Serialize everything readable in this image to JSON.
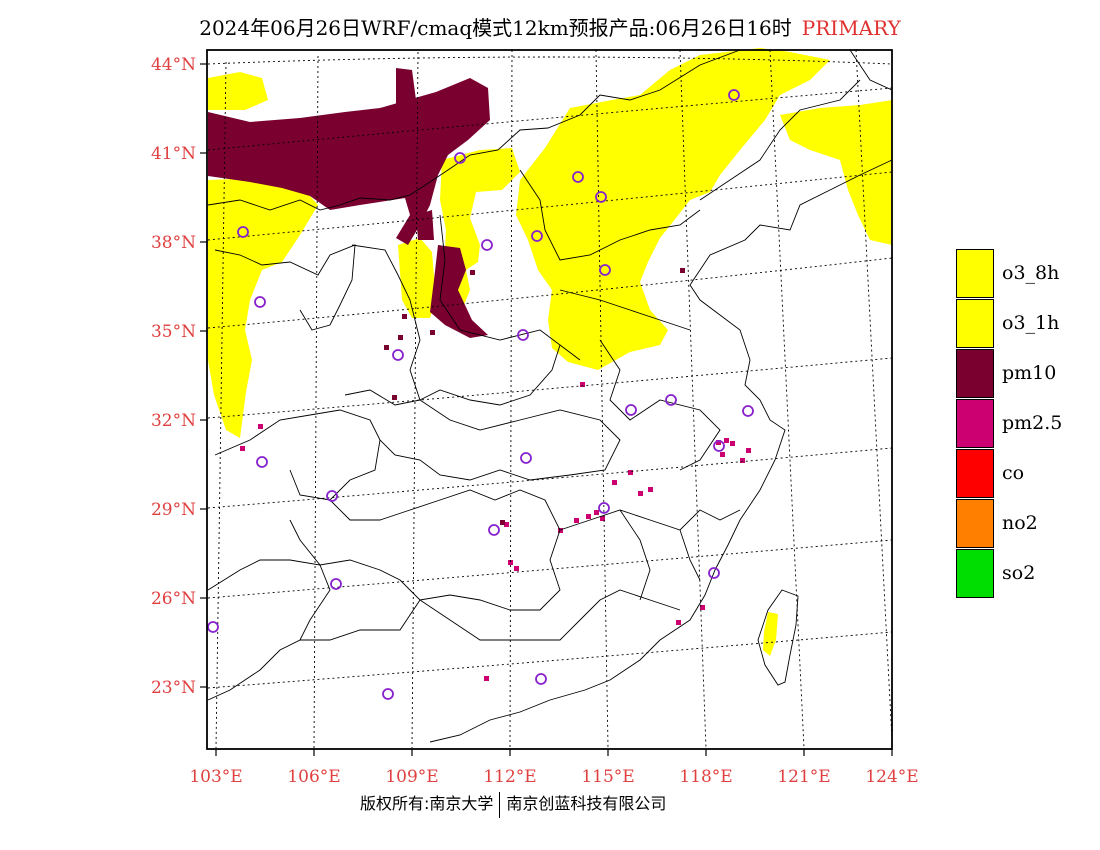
{
  "title": {
    "main": "2024年06月26日WRF/cmaq模式12km预报产品:06月26日16时",
    "tag": "PRIMARY"
  },
  "axes": {
    "lon_labels": [
      "103°E",
      "106°E",
      "109°E",
      "112°E",
      "115°E",
      "118°E",
      "121°E",
      "124°E"
    ],
    "lat_labels": [
      "44°N",
      "41°N",
      "38°N",
      "35°N",
      "32°N",
      "29°N",
      "26°N",
      "23°N"
    ],
    "label_color": "#e04040"
  },
  "legend": {
    "items": [
      {
        "label": "o3_8h",
        "color": "#ffff00"
      },
      {
        "label": "o3_1h",
        "color": "#ffff00"
      },
      {
        "label": "pm10",
        "color": "#7a0030"
      },
      {
        "label": "pm2.5",
        "color": "#cc0070"
      },
      {
        "label": "co",
        "color": "#ff0000"
      },
      {
        "label": "no2",
        "color": "#ff7f00"
      },
      {
        "label": "so2",
        "color": "#00dd00"
      }
    ]
  },
  "footer": {
    "left": "版权所有:南京大学",
    "right": "南京创蓝科技有限公司"
  },
  "colors": {
    "o3": "#ffff00",
    "pm10": "#7a0030",
    "pm25": "#cc0070",
    "station_ring": "#8822cc"
  }
}
